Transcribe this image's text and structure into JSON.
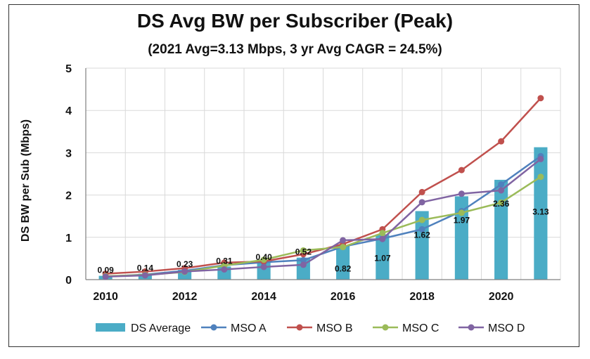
{
  "chart_data": {
    "type": "bar",
    "title": "DS Avg BW per Subscriber (Peak)",
    "subtitle": "(2021 Avg=3.13 Mbps, 3 yr Avg CAGR = 24.5%)",
    "ylabel": "DS BW per Sub (Mbps)",
    "xlabel": "",
    "x": [
      2010,
      2011,
      2012,
      2013,
      2014,
      2015,
      2016,
      2017,
      2018,
      2019,
      2020,
      2021
    ],
    "x_tick_labels": [
      "2010",
      "2012",
      "2014",
      "2016",
      "2018",
      "2020"
    ],
    "x_tick_values": [
      2010,
      2012,
      2014,
      2016,
      2018,
      2020
    ],
    "ylim": [
      0,
      5
    ],
    "y_ticks": [
      0,
      1,
      2,
      3,
      4,
      5
    ],
    "grid": "both",
    "legend_position": "bottom",
    "bar_series": {
      "name": "DS Average",
      "color": "#4bacc6",
      "values": [
        0.09,
        0.14,
        0.23,
        0.31,
        0.4,
        0.52,
        0.82,
        1.07,
        1.62,
        1.97,
        2.36,
        3.13
      ],
      "labels": [
        "0.09",
        "0.14",
        "0.23",
        "0.31",
        "0.40",
        "0.52",
        "0.82",
        "1.07",
        "1.62",
        "1.97",
        "2.36",
        "3.13"
      ]
    },
    "line_series": [
      {
        "name": "MSO A",
        "color": "#4f81bd",
        "values": [
          0.07,
          0.12,
          0.21,
          0.34,
          0.41,
          0.46,
          0.78,
          0.97,
          1.19,
          1.62,
          2.25,
          2.92
        ]
      },
      {
        "name": "MSO B",
        "color": "#c0504d",
        "values": [
          0.14,
          0.19,
          0.27,
          0.4,
          0.43,
          0.6,
          0.84,
          1.19,
          2.07,
          2.59,
          3.27,
          4.29
        ]
      },
      {
        "name": "MSO C",
        "color": "#9bbb59",
        "values": [
          0.08,
          0.11,
          0.18,
          0.33,
          0.47,
          0.69,
          0.77,
          1.1,
          1.41,
          1.58,
          1.82,
          2.43
        ]
      },
      {
        "name": "MSO D",
        "color": "#8064a2",
        "values": [
          0.07,
          0.1,
          0.19,
          0.24,
          0.3,
          0.35,
          0.93,
          0.96,
          1.83,
          2.03,
          2.11,
          2.85
        ]
      }
    ]
  }
}
